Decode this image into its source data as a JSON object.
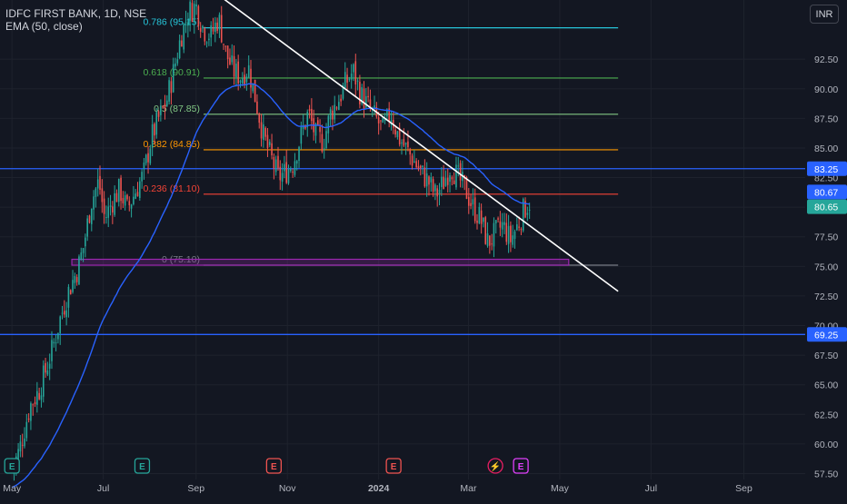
{
  "legend": {
    "symbol": "IDFC FIRST BANK, 1D, NSE",
    "indicator": "EMA (50, close)"
  },
  "currency": "INR",
  "colors": {
    "background": "#131722",
    "grid": "#1e222d",
    "up": "#26a69a",
    "down": "#ef5350",
    "ema": "#2962ff",
    "text": "#b2b5be",
    "trendline": "#ffffff",
    "support_box": "#9c27b0"
  },
  "chart_data": {
    "type": "candlestick",
    "y_ticks": [
      "57.50",
      "60.00",
      "62.50",
      "65.00",
      "67.50",
      "70.00",
      "72.50",
      "75.00",
      "77.50",
      "80.00",
      "82.50",
      "85.00",
      "87.50",
      "90.00",
      "92.50"
    ],
    "ylim": [
      57.0,
      97.5
    ],
    "x_ticks": [
      "May",
      "Jul",
      "Sep",
      "Nov",
      "2024",
      "Mar",
      "May",
      "Jul",
      "Sep"
    ],
    "x_tick_days": [
      0,
      61,
      123,
      184,
      245,
      305,
      366,
      427,
      489
    ],
    "xlim_days": [
      -8,
      530
    ],
    "fibonacci": [
      {
        "label": "0.786 (95.15)",
        "value": 95.15,
        "color": "#26c6da"
      },
      {
        "label": "0.618 (90.91)",
        "value": 90.91,
        "color": "#4caf50"
      },
      {
        "label": "0.5 (87.85)",
        "value": 87.85,
        "color": "#81c784"
      },
      {
        "label": "0.382 (84.85)",
        "value": 84.85,
        "color": "#ff9800"
      },
      {
        "label": "0.236 (81.10)",
        "value": 81.1,
        "color": "#f44336"
      },
      {
        "label": "0 (75.10)",
        "value": 75.1,
        "color": "#787b86"
      }
    ],
    "fib_start_day": 128,
    "fib_end_day": 405,
    "horizontal_lines": [
      {
        "label": "83.25",
        "value": 83.25
      },
      {
        "label": "69.25",
        "value": 69.25
      }
    ],
    "price_markers": [
      {
        "label": "80.67",
        "value": 80.67,
        "color": "#2962ff"
      },
      {
        "label": "80.65",
        "value": 80.65,
        "color": "#26a69a"
      }
    ],
    "trendline": {
      "from": {
        "day": 135,
        "value": 98.2
      },
      "to": {
        "day": 405,
        "value": 72.9
      }
    },
    "support_zone": {
      "from_day": 40,
      "to_day": 372,
      "low": 75.1,
      "high": 75.6
    },
    "events": [
      {
        "label": "E",
        "day": 0,
        "color": "#26a69a"
      },
      {
        "label": "E",
        "day": 87,
        "color": "#26a69a"
      },
      {
        "label": "E",
        "day": 175,
        "color": "#ef5350"
      },
      {
        "label": "E",
        "day": 255,
        "color": "#ef5350"
      },
      {
        "label": "⚡",
        "day": 323,
        "color": "#e91e63"
      },
      {
        "label": "E",
        "day": 340,
        "color": "#e040fb"
      }
    ],
    "price_path": [
      [
        0,
        57.8
      ],
      [
        5,
        59.5
      ],
      [
        12,
        63.2
      ],
      [
        18,
        64.5
      ],
      [
        22,
        66.0
      ],
      [
        27,
        68.0
      ],
      [
        32,
        70.5
      ],
      [
        38,
        73.0
      ],
      [
        44,
        74.8
      ],
      [
        48,
        76.8
      ],
      [
        53,
        80.5
      ],
      [
        58,
        82.2
      ],
      [
        62,
        79.0
      ],
      [
        67,
        80.5
      ],
      [
        72,
        81.5
      ],
      [
        77,
        79.8
      ],
      [
        82,
        81.2
      ],
      [
        88,
        82.8
      ],
      [
        93,
        85.8
      ],
      [
        98,
        87.5
      ],
      [
        103,
        88.8
      ],
      [
        108,
        91.5
      ],
      [
        113,
        94.5
      ],
      [
        118,
        96.5
      ],
      [
        123,
        97.0
      ],
      [
        128,
        95.0
      ],
      [
        133,
        94.5
      ],
      [
        138,
        96.0
      ],
      [
        143,
        93.0
      ],
      [
        148,
        91.5
      ],
      [
        153,
        91.0
      ],
      [
        158,
        91.8
      ],
      [
        163,
        89.0
      ],
      [
        168,
        86.0
      ],
      [
        173,
        84.2
      ],
      [
        178,
        82.5
      ],
      [
        183,
        83.0
      ],
      [
        188,
        83.8
      ],
      [
        193,
        86.0
      ],
      [
        198,
        88.0
      ],
      [
        203,
        86.0
      ],
      [
        208,
        85.5
      ],
      [
        213,
        88.0
      ],
      [
        218,
        89.0
      ],
      [
        223,
        90.5
      ],
      [
        228,
        91.5
      ],
      [
        233,
        89.5
      ],
      [
        238,
        88.5
      ],
      [
        243,
        87.5
      ],
      [
        248,
        86.5
      ],
      [
        253,
        88.0
      ],
      [
        258,
        86.0
      ],
      [
        263,
        85.0
      ],
      [
        268,
        84.0
      ],
      [
        273,
        83.0
      ],
      [
        278,
        82.2
      ],
      [
        283,
        81.0
      ],
      [
        288,
        82.0
      ],
      [
        293,
        83.5
      ],
      [
        298,
        82.5
      ],
      [
        303,
        81.5
      ],
      [
        308,
        80.0
      ],
      [
        313,
        79.0
      ],
      [
        318,
        77.0
      ],
      [
        323,
        77.8
      ],
      [
        328,
        78.5
      ],
      [
        333,
        77.2
      ],
      [
        338,
        78.5
      ],
      [
        342,
        79.8
      ],
      [
        347,
        80.65
      ]
    ]
  }
}
